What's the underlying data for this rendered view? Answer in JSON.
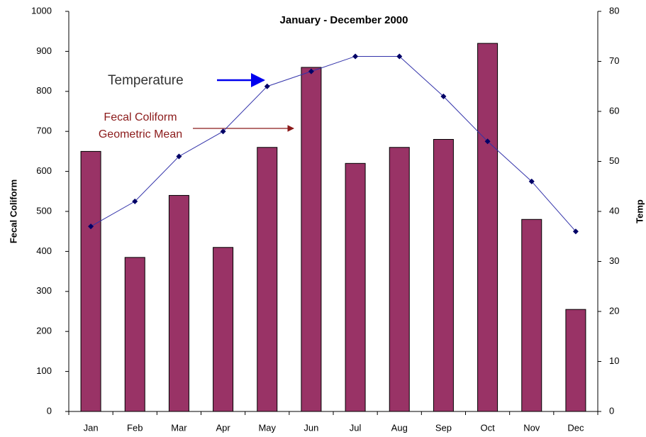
{
  "chart_data": {
    "type": "bar_line",
    "title": "January - December 2000",
    "y_label": "Fecal Coliform",
    "y2_label": "Temp",
    "annotations": {
      "temperature": "Temperature",
      "fecal": [
        "Fecal Coliform",
        "Geometric Mean"
      ]
    },
    "categories": [
      "Jan",
      "Feb",
      "Mar",
      "Apr",
      "May",
      "Jun",
      "Jul",
      "Aug",
      "Sep",
      "Oct",
      "Nov",
      "Dec"
    ],
    "series": [
      {
        "type": "bar",
        "color": "#993366",
        "values": [
          650,
          385,
          540,
          410,
          660,
          860,
          620,
          660,
          680,
          920,
          480,
          255
        ]
      },
      {
        "type": "line",
        "axis": "y2",
        "color": "#3333aa",
        "values": [
          37,
          42,
          51,
          56,
          65,
          68,
          71,
          71,
          63,
          54,
          46,
          36
        ]
      }
    ],
    "ylim": [
      0,
      1000
    ],
    "yticks": [
      0,
      100,
      200,
      300,
      400,
      500,
      600,
      700,
      800,
      900,
      1000
    ],
    "y2lim": [
      0,
      80
    ],
    "y2ticks": [
      0,
      10,
      20,
      30,
      40,
      50,
      60,
      70,
      80
    ]
  }
}
